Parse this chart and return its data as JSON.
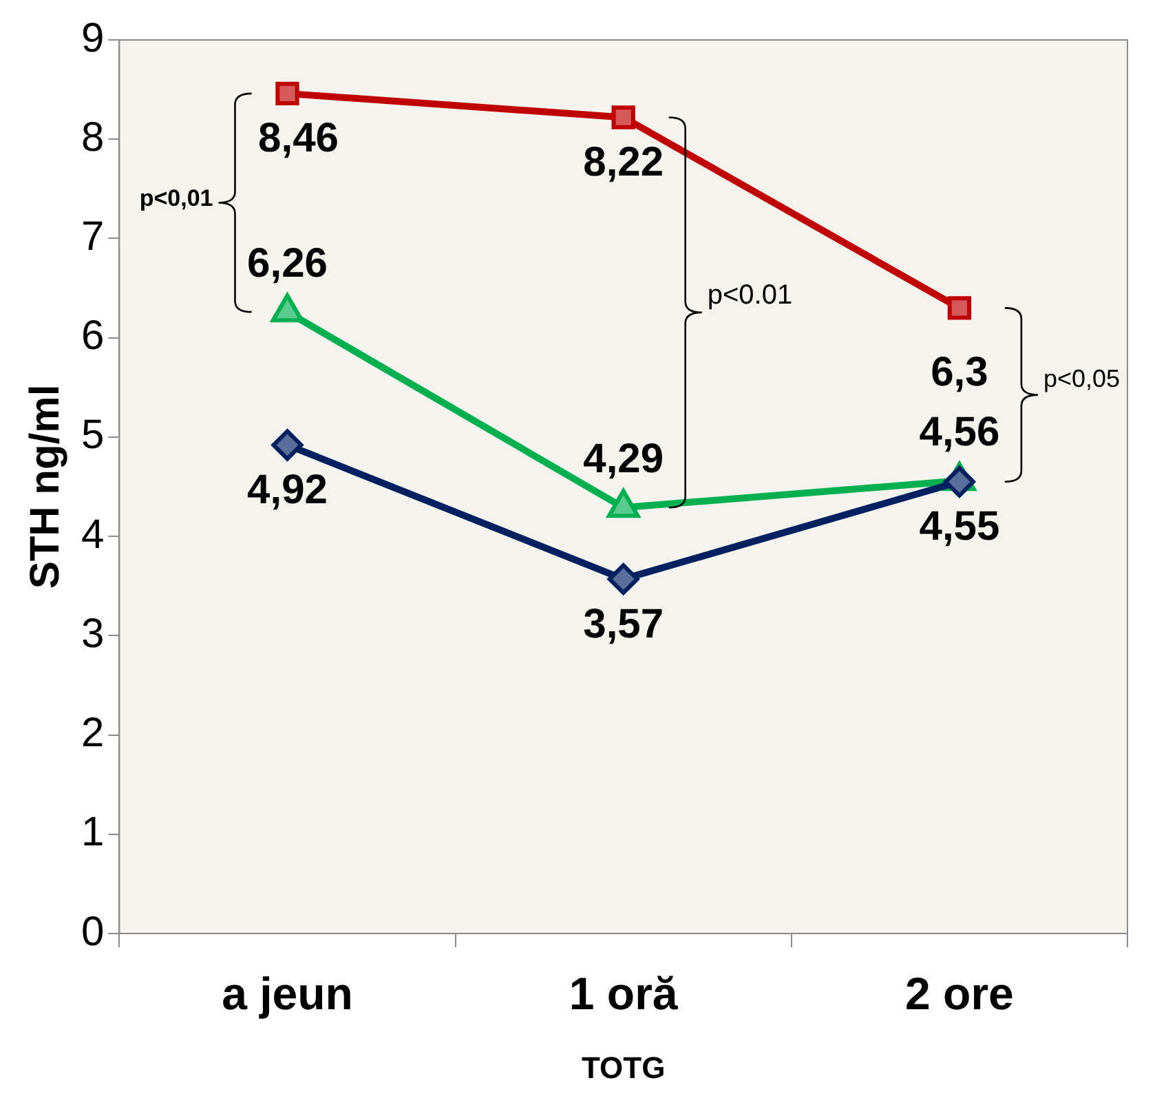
{
  "chart_data": {
    "type": "line",
    "xlabel": "TOTG",
    "ylabel": "STH ng/ml",
    "categories": [
      "a jeun",
      "1 oră",
      "2 ore"
    ],
    "ylim": [
      0,
      9
    ],
    "yticks": [
      0,
      1,
      2,
      3,
      4,
      5,
      6,
      7,
      8,
      9
    ],
    "grid": false,
    "legend": false,
    "series": [
      {
        "color": "#c00000",
        "marker": "square",
        "values": [
          8.46,
          8.22,
          6.3
        ],
        "value_labels": [
          "8,46",
          "8,22",
          "6,3"
        ]
      },
      {
        "color": "#00b050",
        "marker": "triangle",
        "values": [
          6.26,
          4.29,
          4.56
        ],
        "value_labels": [
          "6,26",
          "4,29",
          "4,56"
        ]
      },
      {
        "color": "#002060",
        "marker": "diamond",
        "values": [
          4.92,
          3.57,
          4.55
        ],
        "value_labels": [
          "4,92",
          "3,57",
          "4,55"
        ]
      }
    ],
    "annotations": [
      "p<0,01",
      "p<0.01",
      "p<0,05"
    ]
  }
}
